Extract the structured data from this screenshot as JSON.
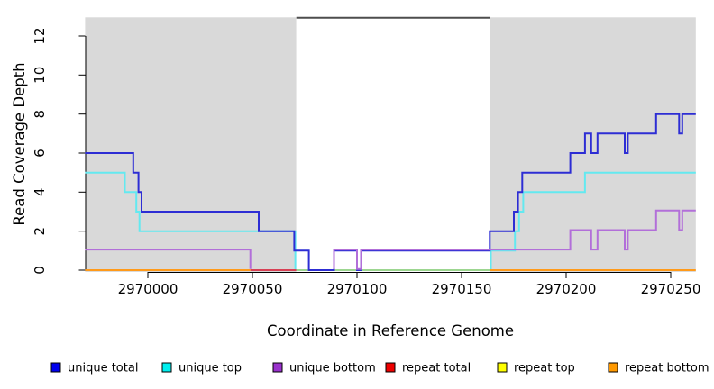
{
  "chart_data": {
    "type": "line",
    "title": "",
    "xlabel": "Coordinate in Reference Genome",
    "ylabel": "Read Coverage Depth",
    "xlim": [
      2969970,
      2970262
    ],
    "ylim": [
      0,
      13
    ],
    "grid": false,
    "legend_position": "bottom",
    "x_ticks": [
      {
        "value": 2970000,
        "label": "2970000"
      },
      {
        "value": 2970050,
        "label": "2970050"
      },
      {
        "value": 2970100,
        "label": "2970100"
      },
      {
        "value": 2970150,
        "label": "2970150"
      },
      {
        "value": 2970200,
        "label": "2970200"
      },
      {
        "value": 2970250,
        "label": "2970250"
      }
    ],
    "y_ticks": [
      {
        "value": 0,
        "label": "0"
      },
      {
        "value": 2,
        "label": "2"
      },
      {
        "value": 4,
        "label": "4"
      },
      {
        "value": 6,
        "label": "6"
      },
      {
        "value": 8,
        "label": "8"
      },
      {
        "value": 10,
        "label": "10"
      },
      {
        "value": 12,
        "label": "12"
      }
    ],
    "background_regions": [
      {
        "name": "unique-left-region",
        "start": 2969970,
        "end": 2970071,
        "fill": "#d9d9d9"
      },
      {
        "name": "repeat-window-region",
        "start": 2970071,
        "end": 2970163.5,
        "fill": "#ffffff"
      },
      {
        "name": "unique-right-region",
        "start": 2970163.5,
        "end": 2970262,
        "fill": "#d9d9d9"
      }
    ],
    "repeat_marker": {
      "start": 2970071,
      "end": 2970163.5,
      "color": "#4d4d4d"
    },
    "series": [
      {
        "id": "unique-top",
        "legend": "unique top",
        "color": "#63e9f0",
        "legend_color": "#00eeee",
        "dy": 0,
        "segments": [
          [
            [
              2969970,
              5
            ],
            [
              2969989,
              4
            ],
            [
              2969994.5,
              3
            ],
            [
              2969996,
              2
            ],
            [
              2970070.5,
              0
            ],
            [
              2970164,
              1
            ],
            [
              2970175.5,
              2
            ],
            [
              2970177.5,
              3
            ],
            [
              2970179.5,
              4
            ],
            [
              2970209,
              5
            ],
            [
              2970262,
              5
            ]
          ]
        ]
      },
      {
        "id": "repeat-total",
        "legend": "repeat total",
        "color": "#d84055",
        "legend_color": "#ee0000",
        "dy": 0,
        "segments": [
          [
            [
              2970049,
              0
            ],
            [
              2970071,
              0
            ]
          ]
        ]
      },
      {
        "id": "repeat-top",
        "legend": "repeat top",
        "color": "#9cd690",
        "legend_color": "#ffff00",
        "dy": 0,
        "segments": [
          [
            [
              2970071,
              0
            ],
            [
              2970163.5,
              0
            ]
          ]
        ]
      },
      {
        "id": "unique-total",
        "legend": "unique total",
        "color": "#2d2dd4",
        "legend_color": "#0000ee",
        "dy": 0,
        "segments": [
          [
            [
              2969970,
              6
            ],
            [
              2969993,
              5
            ],
            [
              2969995.5,
              4
            ],
            [
              2969997,
              3
            ],
            [
              2970053,
              2
            ],
            [
              2970070,
              1
            ],
            [
              2970077,
              0
            ],
            [
              2970089,
              1
            ],
            [
              2970100,
              0
            ],
            [
              2970102,
              1
            ],
            [
              2970163.5,
              2
            ],
            [
              2970175,
              3
            ],
            [
              2970177,
              4
            ],
            [
              2970179,
              5
            ],
            [
              2970202,
              6
            ],
            [
              2970209,
              7
            ],
            [
              2970212,
              6
            ],
            [
              2970215,
              7
            ],
            [
              2970228,
              6
            ],
            [
              2970229.5,
              7
            ],
            [
              2970243,
              8
            ],
            [
              2970254,
              7
            ],
            [
              2970255.5,
              8
            ],
            [
              2970262,
              8
            ]
          ]
        ]
      },
      {
        "id": "unique-bottom",
        "legend": "unique bottom",
        "color": "#b26fd9",
        "legend_color": "#9a32cd",
        "dy": -1.2,
        "segments": [
          [
            [
              2969970,
              1
            ],
            [
              2970049,
              0
            ]
          ],
          [
            [
              2970089,
              0
            ],
            [
              2970089,
              1
            ],
            [
              2970100,
              0
            ],
            [
              2970102,
              1
            ],
            [
              2970202,
              2
            ],
            [
              2970212,
              1
            ],
            [
              2970215,
              2
            ],
            [
              2970228,
              1
            ],
            [
              2970229.5,
              2
            ],
            [
              2970243,
              3
            ],
            [
              2970254,
              2
            ],
            [
              2970255.5,
              3
            ],
            [
              2970262,
              3
            ]
          ]
        ]
      },
      {
        "id": "repeat-bottom",
        "legend": "repeat bottom",
        "color": "#ff9a1a",
        "legend_color": "#ff9900",
        "dy": 0,
        "segments": [
          [
            [
              2969970,
              0
            ],
            [
              2970049,
              0
            ]
          ],
          [
            [
              2970163.5,
              0
            ],
            [
              2970262,
              0
            ]
          ]
        ]
      }
    ],
    "legend": [
      {
        "label": "unique total",
        "color": "#0000ee"
      },
      {
        "label": "unique top",
        "color": "#00eeee"
      },
      {
        "label": "unique bottom",
        "color": "#9a32cd"
      },
      {
        "label": "repeat total",
        "color": "#ee0000"
      },
      {
        "label": "repeat top",
        "color": "#ffff00"
      },
      {
        "label": "repeat bottom",
        "color": "#ff9900"
      }
    ]
  }
}
